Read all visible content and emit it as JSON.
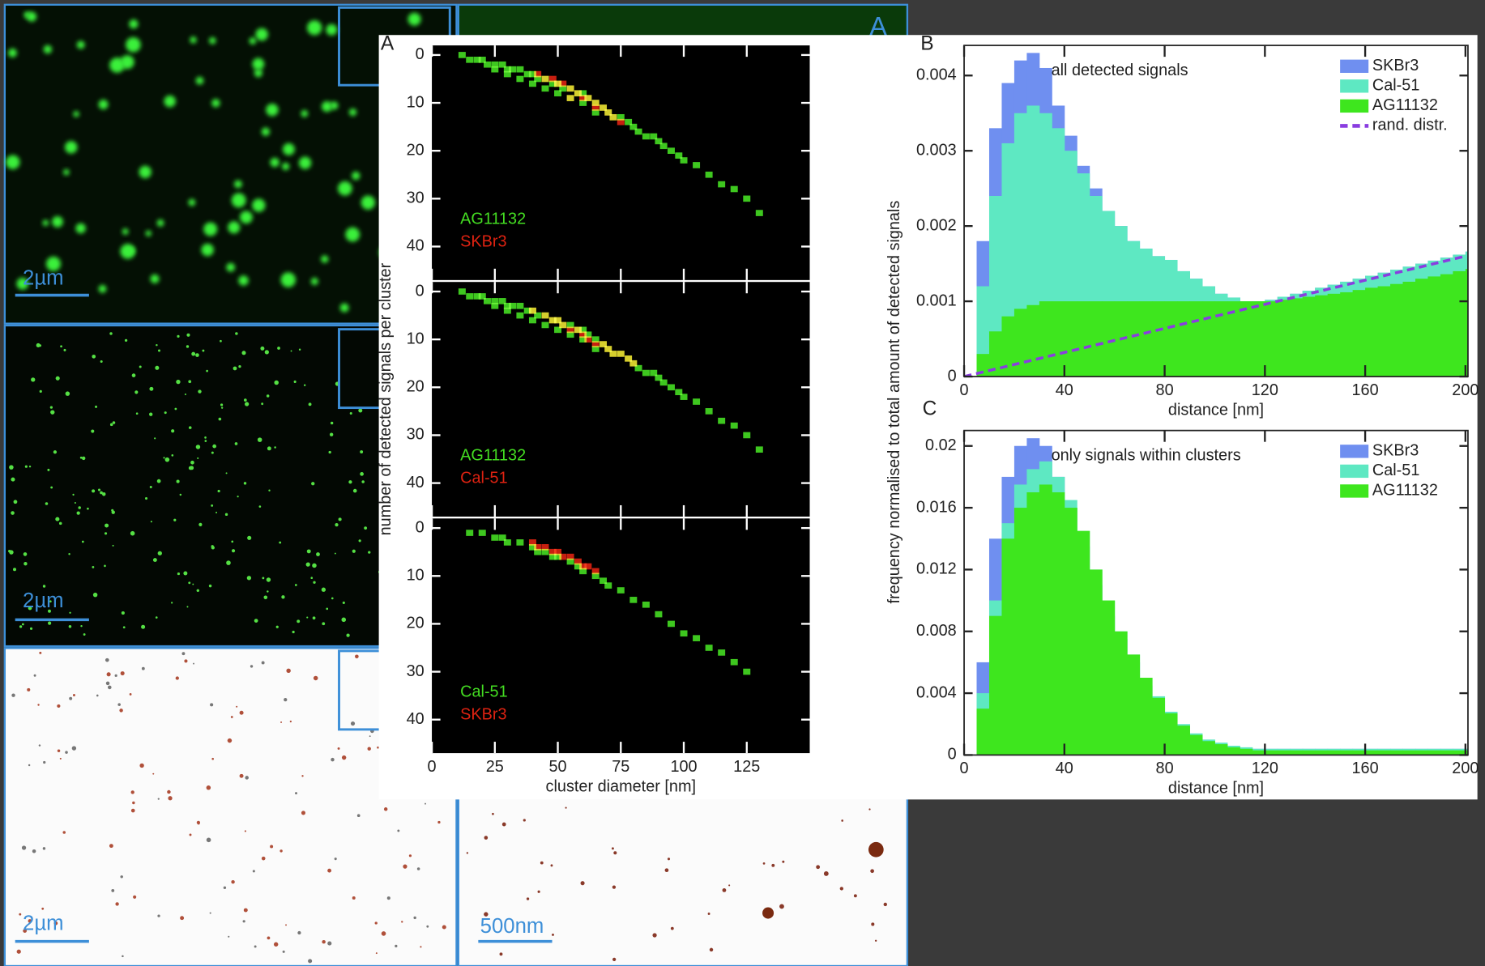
{
  "images": {
    "scale_bars": [
      "2µm",
      "2µm",
      "2µm",
      "500nm"
    ],
    "panel_label": "A"
  },
  "chart_data": [
    {
      "type": "scatter",
      "panel": "A",
      "y_label": "number of detected signals per cluster",
      "xlim": [
        0,
        150
      ],
      "ylim": [
        47,
        -2
      ],
      "xticks": [
        0,
        25,
        50,
        75,
        100,
        125
      ],
      "yticks": [
        0,
        10,
        20,
        30,
        40
      ],
      "xtick_labels": false,
      "series": [
        {
          "name": "AG11132",
          "color": "#44dd22",
          "x": [
            12,
            15,
            18,
            20,
            22,
            25,
            25,
            28,
            30,
            30,
            32,
            35,
            35,
            38,
            40,
            40,
            42,
            45,
            45,
            48,
            50,
            50,
            52,
            55,
            55,
            58,
            60,
            60,
            62,
            65,
            65,
            68,
            70,
            72,
            75,
            78,
            80,
            82,
            85,
            88,
            90,
            92,
            95,
            98,
            100,
            105,
            110,
            115,
            120,
            125,
            130
          ],
          "values": [
            0,
            1,
            1,
            1,
            2,
            2,
            3,
            2,
            3,
            4,
            3,
            3,
            5,
            4,
            4,
            6,
            5,
            5,
            7,
            6,
            6,
            8,
            7,
            7,
            9,
            8,
            8,
            10,
            9,
            10,
            12,
            11,
            12,
            13,
            13,
            14,
            15,
            16,
            17,
            17,
            18,
            19,
            20,
            21,
            22,
            23,
            25,
            27,
            28,
            30,
            33
          ]
        },
        {
          "name": "SKBr3",
          "color": "#dd2211",
          "x": [
            42,
            45,
            48,
            50,
            52,
            55,
            55,
            58,
            60,
            62,
            65,
            65,
            68,
            70,
            72,
            75
          ],
          "values": [
            4,
            5,
            5,
            6,
            6,
            7,
            9,
            8,
            9,
            9,
            10,
            11,
            11,
            12,
            13,
            14
          ]
        }
      ]
    },
    {
      "type": "scatter",
      "xlim": [
        0,
        150
      ],
      "ylim": [
        47,
        -2
      ],
      "xticks": [
        0,
        25,
        50,
        75,
        100,
        125
      ],
      "yticks": [
        0,
        10,
        20,
        30,
        40
      ],
      "xtick_labels": false,
      "series": [
        {
          "name": "AG11132",
          "color": "#44dd22",
          "x": [
            12,
            15,
            18,
            20,
            22,
            25,
            25,
            28,
            30,
            30,
            32,
            35,
            35,
            38,
            40,
            40,
            42,
            45,
            45,
            48,
            50,
            50,
            52,
            55,
            55,
            58,
            60,
            60,
            62,
            65,
            65,
            68,
            70,
            72,
            75,
            78,
            80,
            82,
            85,
            88,
            90,
            92,
            95,
            98,
            100,
            105,
            110,
            115,
            120,
            125,
            130
          ],
          "values": [
            0,
            1,
            1,
            1,
            2,
            2,
            3,
            2,
            3,
            4,
            3,
            3,
            5,
            4,
            4,
            6,
            5,
            5,
            7,
            6,
            6,
            8,
            7,
            7,
            9,
            8,
            8,
            10,
            9,
            10,
            12,
            11,
            12,
            13,
            13,
            14,
            15,
            16,
            17,
            17,
            18,
            19,
            20,
            21,
            22,
            23,
            25,
            27,
            28,
            30,
            33
          ]
        },
        {
          "name": "Cal-51",
          "color": "#dd2211",
          "x": [
            40,
            45,
            48,
            50,
            52,
            55,
            58,
            60,
            62,
            65,
            68,
            70,
            72,
            75,
            78,
            80
          ],
          "values": [
            4,
            5,
            6,
            6,
            7,
            8,
            8,
            9,
            10,
            11,
            11,
            12,
            13,
            13,
            14,
            15
          ]
        }
      ]
    },
    {
      "type": "scatter",
      "x_label": "cluster diameter [nm]",
      "xlim": [
        0,
        150
      ],
      "ylim": [
        47,
        -2
      ],
      "xticks": [
        0,
        25,
        50,
        75,
        100,
        125
      ],
      "yticks": [
        0,
        10,
        20,
        30,
        40
      ],
      "series": [
        {
          "name": "Cal-51",
          "color": "#44dd22",
          "x": [
            15,
            20,
            25,
            28,
            30,
            35,
            40,
            42,
            45,
            48,
            50,
            55,
            58,
            60,
            65,
            68,
            70,
            75,
            80,
            85,
            90,
            95,
            100,
            105,
            110,
            115,
            120,
            125
          ],
          "values": [
            1,
            1,
            2,
            2,
            3,
            3,
            4,
            5,
            5,
            6,
            6,
            7,
            8,
            9,
            10,
            11,
            12,
            13,
            15,
            16,
            18,
            20,
            22,
            23,
            25,
            26,
            28,
            30
          ]
        },
        {
          "name": "SKBr3",
          "color": "#dd2211",
          "x": [
            40,
            42,
            45,
            48,
            50,
            52,
            55,
            58,
            60,
            62,
            65
          ],
          "values": [
            3,
            4,
            4,
            5,
            5,
            6,
            6,
            7,
            8,
            8,
            9
          ]
        }
      ]
    },
    {
      "type": "histogram",
      "panel": "B",
      "title": "all detected signals",
      "x_label": "distance [nm]",
      "y_label": "frequency normalised to total amount of detected signals",
      "xlim": [
        0,
        201
      ],
      "ylim": [
        0,
        0.0044
      ],
      "xticks": [
        0,
        40,
        80,
        120,
        160,
        200
      ],
      "yticks": [
        0,
        0.001,
        0.002,
        0.003,
        0.004
      ],
      "x": [
        0,
        5,
        10,
        15,
        20,
        25,
        30,
        35,
        40,
        45,
        50,
        55,
        60,
        65,
        70,
        75,
        80,
        85,
        90,
        95,
        100,
        105,
        110,
        115,
        120,
        125,
        130,
        135,
        140,
        145,
        150,
        155,
        160,
        165,
        170,
        175,
        180,
        185,
        190,
        195,
        200
      ],
      "series": [
        {
          "name": "SKBr3",
          "color": "#6f8ff0",
          "values": [
            0,
            0.0018,
            0.0033,
            0.0039,
            0.0042,
            0.0043,
            0.0041,
            0.0036,
            0.0032,
            0.0028,
            0.0025,
            0.0022,
            0.002,
            0.0018,
            0.0017,
            0.0016,
            0.00155,
            0.0014,
            0.0013,
            0.0012,
            0.0011,
            0.00105,
            0.001,
            0.001,
            0.00102,
            0.00106,
            0.0011,
            0.00114,
            0.00118,
            0.00122,
            0.00126,
            0.0013,
            0.00134,
            0.00138,
            0.00142,
            0.00146,
            0.0015,
            0.00154,
            0.00158,
            0.00162,
            0.00166
          ]
        },
        {
          "name": "Cal-51",
          "color": "#5ee8c2",
          "values": [
            0,
            0.0012,
            0.0024,
            0.0031,
            0.0035,
            0.0036,
            0.0035,
            0.0033,
            0.003,
            0.0027,
            0.0024,
            0.0022,
            0.002,
            0.0018,
            0.0017,
            0.0016,
            0.00155,
            0.0014,
            0.0013,
            0.0012,
            0.0011,
            0.00105,
            0.001,
            0.001,
            0.00102,
            0.00106,
            0.0011,
            0.00114,
            0.00118,
            0.00122,
            0.00126,
            0.0013,
            0.00134,
            0.00138,
            0.00142,
            0.00146,
            0.0015,
            0.00154,
            0.00158,
            0.00162,
            0.00166
          ]
        },
        {
          "name": "AG11132",
          "color": "#3ee61e",
          "values": [
            0,
            0.0003,
            0.0006,
            0.0008,
            0.0009,
            0.00095,
            0.001,
            0.001,
            0.001,
            0.001,
            0.001,
            0.001,
            0.001,
            0.001,
            0.001,
            0.001,
            0.001,
            0.001,
            0.001,
            0.001,
            0.001,
            0.001,
            0.001,
            0.001,
            0.001,
            0.00102,
            0.00104,
            0.00106,
            0.00108,
            0.0011,
            0.00112,
            0.00115,
            0.00118,
            0.0012,
            0.00123,
            0.00126,
            0.0013,
            0.00133,
            0.00136,
            0.0014,
            0.00143
          ]
        },
        {
          "name": "rand. distr.",
          "color": "#8a3de0",
          "type": "line",
          "dashed": true,
          "x": [
            0,
            200
          ],
          "values": [
            0,
            0.0016
          ]
        }
      ]
    },
    {
      "type": "histogram",
      "panel": "C",
      "title": "only signals within clusters",
      "x_label": "distance [nm]",
      "xlim": [
        0,
        201
      ],
      "ylim": [
        0,
        0.021
      ],
      "xticks": [
        0,
        40,
        80,
        120,
        160,
        200
      ],
      "yticks": [
        0,
        0.004,
        0.008,
        0.012,
        0.016,
        0.02
      ],
      "x": [
        0,
        5,
        10,
        15,
        20,
        25,
        30,
        35,
        40,
        45,
        50,
        55,
        60,
        65,
        70,
        75,
        80,
        85,
        90,
        95,
        100,
        105,
        110,
        115,
        120,
        125,
        130,
        135,
        140,
        145,
        150,
        155,
        160,
        165,
        170,
        175,
        180,
        185,
        190,
        195,
        200
      ],
      "series": [
        {
          "name": "SKBr3",
          "color": "#6f8ff0",
          "values": [
            0,
            0.006,
            0.014,
            0.018,
            0.02,
            0.0205,
            0.02,
            0.018,
            0.016,
            0.0135,
            0.011,
            0.009,
            0.0075,
            0.006,
            0.0045,
            0.0035,
            0.0025,
            0.0018,
            0.0012,
            0.0009,
            0.0007,
            0.0005,
            0.0004,
            0.0004,
            0.0004,
            0.0004,
            0.0004,
            0.0004,
            0.0004,
            0.0004,
            0.0004,
            0.0004,
            0.0004,
            0.0004,
            0.0004,
            0.0004,
            0.0004,
            0.0004,
            0.0004,
            0.0004,
            0.0004
          ]
        },
        {
          "name": "Cal-51",
          "color": "#5ee8c2",
          "values": [
            0,
            0.004,
            0.01,
            0.015,
            0.0175,
            0.0185,
            0.019,
            0.018,
            0.0165,
            0.0145,
            0.012,
            0.01,
            0.008,
            0.0065,
            0.005,
            0.0038,
            0.0028,
            0.002,
            0.0014,
            0.001,
            0.0008,
            0.0006,
            0.0005,
            0.0004,
            0.0004,
            0.0004,
            0.0004,
            0.0004,
            0.0004,
            0.0004,
            0.0004,
            0.0004,
            0.0004,
            0.0004,
            0.0004,
            0.0004,
            0.0004,
            0.0004,
            0.0004,
            0.0004,
            0.0004
          ]
        },
        {
          "name": "AG11132",
          "color": "#3ee61e",
          "values": [
            0,
            0.003,
            0.009,
            0.014,
            0.016,
            0.017,
            0.0175,
            0.017,
            0.016,
            0.0145,
            0.012,
            0.01,
            0.008,
            0.0065,
            0.005,
            0.0037,
            0.0027,
            0.0019,
            0.0013,
            0.0009,
            0.0007,
            0.0005,
            0.0004,
            0.0003,
            0.0003,
            0.0003,
            0.0003,
            0.0003,
            0.0003,
            0.0003,
            0.0003,
            0.0003,
            0.0003,
            0.0003,
            0.0003,
            0.0003,
            0.0003,
            0.0003,
            0.0003,
            0.0003,
            0.0003
          ]
        }
      ]
    }
  ]
}
